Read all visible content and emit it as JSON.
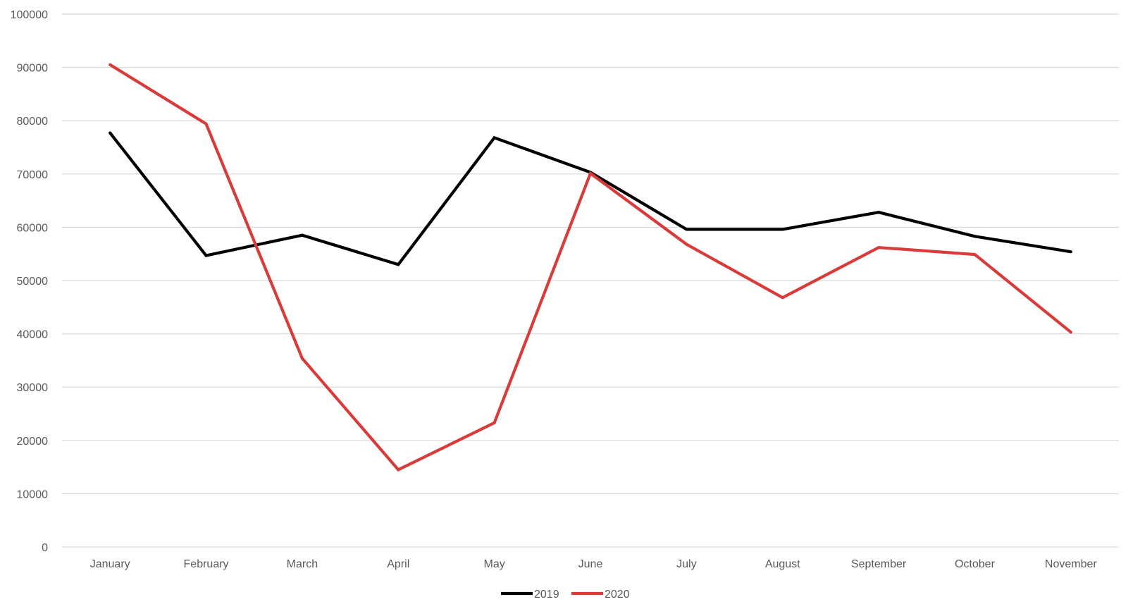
{
  "chart_data": {
    "type": "line",
    "title": "",
    "xlabel": "",
    "ylabel": "",
    "categories": [
      "January",
      "February",
      "March",
      "April",
      "May",
      "June",
      "July",
      "August",
      "September",
      "October",
      "November"
    ],
    "series": [
      {
        "name": "2019",
        "color": "#000000",
        "values": [
          77700,
          54700,
          58500,
          53000,
          76800,
          70300,
          59600,
          59600,
          62800,
          58300,
          55400
        ]
      },
      {
        "name": "2020",
        "color": "#d93a3a",
        "values": [
          90500,
          79400,
          35400,
          14500,
          23300,
          70100,
          56800,
          46800,
          56200,
          54900,
          40300
        ]
      }
    ],
    "ylim": [
      0,
      100000
    ],
    "yticks": [
      "0",
      "10000",
      "20000",
      "30000",
      "40000",
      "50000",
      "60000",
      "70000",
      "80000",
      "90000",
      "100000"
    ],
    "grid": true,
    "grid_color": "#d9d9d9",
    "legend_position": "bottom"
  }
}
